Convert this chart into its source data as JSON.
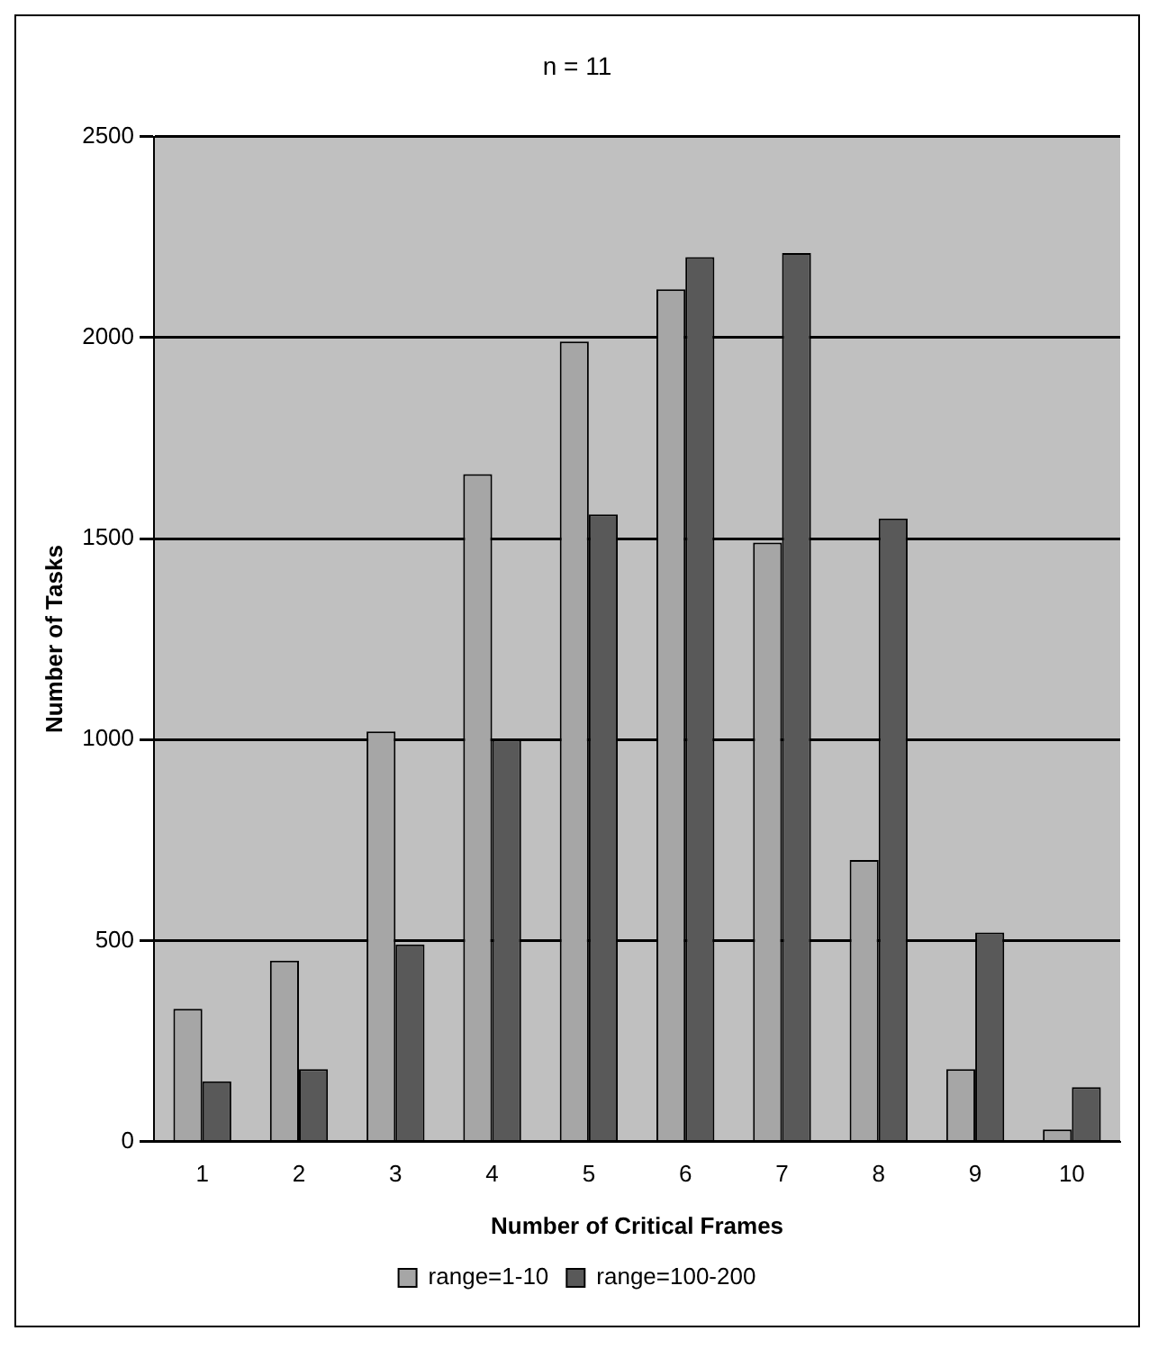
{
  "chart_data": {
    "type": "bar",
    "title": "n = 11",
    "xlabel": "Number of Critical Frames",
    "ylabel": "Number of Tasks",
    "categories": [
      "1",
      "2",
      "3",
      "4",
      "5",
      "6",
      "7",
      "8",
      "9",
      "10"
    ],
    "series": [
      {
        "name": "range=1-10",
        "color": "#a6a6a6",
        "values": [
          330,
          450,
          1020,
          1660,
          1990,
          2120,
          1490,
          700,
          180,
          30
        ]
      },
      {
        "name": "range=100-200",
        "color": "#595959",
        "values": [
          150,
          180,
          490,
          1000,
          1560,
          2200,
          2210,
          1550,
          520,
          135
        ]
      }
    ],
    "ylim": [
      0,
      2500
    ],
    "yticks": [
      0,
      500,
      1000,
      1500,
      2000,
      2500
    ],
    "grid": "y",
    "legend": "bottom"
  }
}
